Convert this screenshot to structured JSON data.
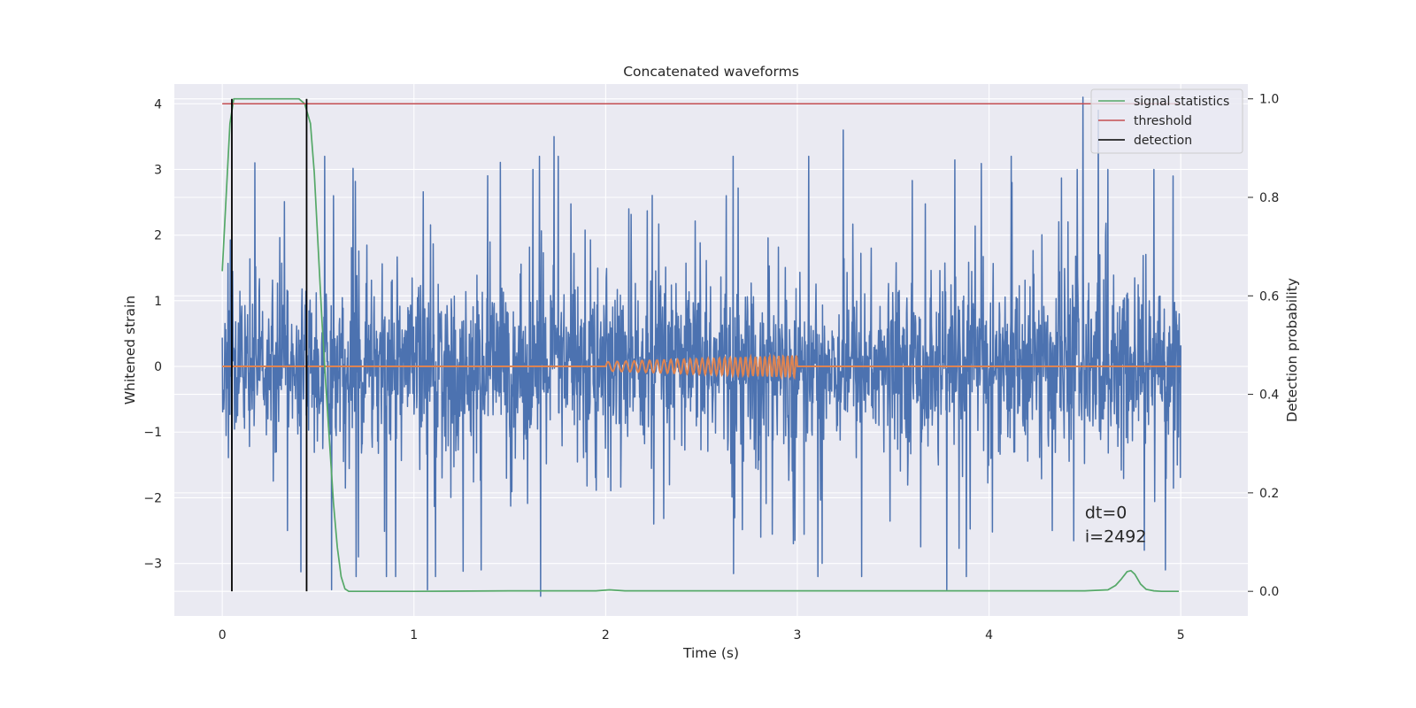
{
  "chart_data": {
    "type": "line",
    "title": "Concatenated waveforms",
    "xlabel": "Time (s)",
    "ylabel": "Whitened strain",
    "ylabel_right": "Detection probability",
    "xlim": [
      -0.25,
      5.35
    ],
    "ylim": [
      -3.8,
      4.3
    ],
    "ylim_right": [
      -0.05,
      1.03
    ],
    "xticks": [
      0,
      1,
      2,
      3,
      4,
      5
    ],
    "xtick_labels": [
      "0",
      "1",
      "2",
      "3",
      "4",
      "5"
    ],
    "yticks": [
      -3,
      -2,
      -1,
      0,
      1,
      2,
      3,
      4
    ],
    "ytick_labels": [
      "−3",
      "−2",
      "−1",
      "0",
      "1",
      "2",
      "3",
      "4"
    ],
    "yticks_right": [
      0.0,
      0.2,
      0.4,
      0.6,
      0.8,
      1.0
    ],
    "ytick_labels_right": [
      "0.0",
      "0.2",
      "0.4",
      "0.6",
      "0.8",
      "1.0"
    ],
    "grid": true,
    "legend_position": "top-right",
    "colors": {
      "background": "#eaeaf2",
      "grid": "#ffffff",
      "strain": "#4c72b0",
      "template": "#dd8452",
      "signal_statistics": "#55a868",
      "threshold": "#c44e52",
      "detection": "#000000"
    },
    "series": [
      {
        "name": "",
        "kind": "noise",
        "axis": "left",
        "x_range": [
          0,
          5
        ],
        "samples": 2500,
        "spread": 0.6,
        "extremes": [
          [
            0.17,
            3.1
          ],
          [
            0.34,
            -2.5
          ],
          [
            0.58,
            2.6
          ],
          [
            0.57,
            -3.4
          ],
          [
            0.71,
            -2.9
          ],
          [
            1.07,
            -3.4
          ],
          [
            1.35,
            -3.1
          ],
          [
            1.62,
            3.0
          ],
          [
            1.66,
            -3.5
          ],
          [
            1.73,
            3.5
          ],
          [
            2.12,
            2.4
          ],
          [
            2.25,
            -2.4
          ],
          [
            2.63,
            2.6
          ],
          [
            2.81,
            -2.6
          ],
          [
            2.98,
            -2.7
          ],
          [
            3.13,
            -3.0
          ],
          [
            3.24,
            3.6
          ],
          [
            3.78,
            -3.4
          ],
          [
            4.12,
            2.8
          ],
          [
            4.33,
            -2.5
          ],
          [
            4.46,
            3.0
          ],
          [
            4.49,
            4.1
          ],
          [
            4.57,
            3.9
          ],
          [
            4.62,
            3.0
          ],
          [
            4.81,
            -2.8
          ],
          [
            4.86,
            3.0
          ],
          [
            4.92,
            -3.1
          ],
          [
            4.96,
            2.9
          ]
        ]
      },
      {
        "name": "",
        "kind": "chirp",
        "axis": "left",
        "x_range": [
          0,
          5
        ],
        "chirp_start": 2.0,
        "chirp_end": 3.0,
        "amplitude_start": 0.07,
        "amplitude_end": 0.17,
        "frequency_start": 20,
        "frequency_end": 45
      },
      {
        "name": "signal statistics",
        "axis": "right",
        "x": [
          0,
          0.02,
          0.04,
          0.06,
          0.1,
          0.2,
          0.3,
          0.4,
          0.43,
          0.46,
          0.48,
          0.5,
          0.52,
          0.54,
          0.56,
          0.58,
          0.6,
          0.62,
          0.64,
          0.66,
          0.7,
          1.0,
          1.5,
          1.95,
          2.02,
          2.1,
          2.5,
          3.0,
          3.5,
          4.0,
          4.5,
          4.62,
          4.66,
          4.69,
          4.72,
          4.74,
          4.76,
          4.79,
          4.82,
          4.86,
          4.9,
          4.99
        ],
        "y": [
          0.65,
          0.8,
          0.95,
          1.0,
          1.0,
          1.0,
          1.0,
          1.0,
          0.99,
          0.95,
          0.85,
          0.7,
          0.55,
          0.42,
          0.3,
          0.18,
          0.09,
          0.03,
          0.005,
          0.0,
          0.0,
          0.0,
          0.001,
          0.001,
          0.003,
          0.001,
          0.001,
          0.001,
          0.001,
          0.001,
          0.001,
          0.003,
          0.012,
          0.025,
          0.04,
          0.042,
          0.035,
          0.015,
          0.004,
          0.001,
          0.0,
          0.0
        ]
      },
      {
        "name": "threshold",
        "axis": "right",
        "x": [
          0,
          5
        ],
        "y": [
          0.99,
          0.99
        ]
      },
      {
        "name": "detection",
        "axis": "right",
        "vlines": [
          0.05,
          0.44
        ],
        "y_range": [
          0.0,
          1.0
        ]
      }
    ],
    "legend": [
      "signal statistics",
      "threshold",
      "detection"
    ],
    "annotations": [
      "dt=0",
      "i=2492"
    ],
    "annotation_position": [
      4.5,
      0.1
    ]
  }
}
